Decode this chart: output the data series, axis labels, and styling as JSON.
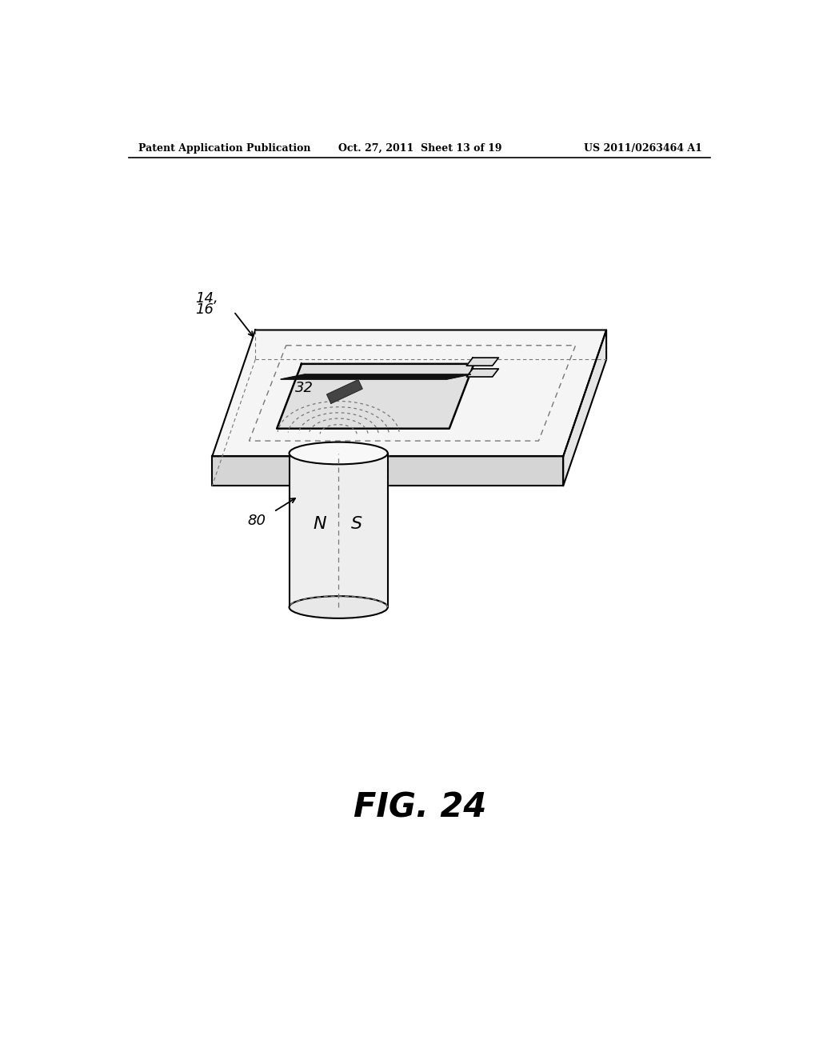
{
  "title": "FIG. 24",
  "header_left": "Patent Application Publication",
  "header_center": "Oct. 27, 2011  Sheet 13 of 19",
  "header_right": "US 2011/0263464 A1",
  "label_14_16": "14,\n16",
  "label_32": "32",
  "label_80": "80",
  "label_N": "N",
  "label_S": "S",
  "bg_color": "#ffffff",
  "line_color": "#000000",
  "dashed_color": "#777777"
}
